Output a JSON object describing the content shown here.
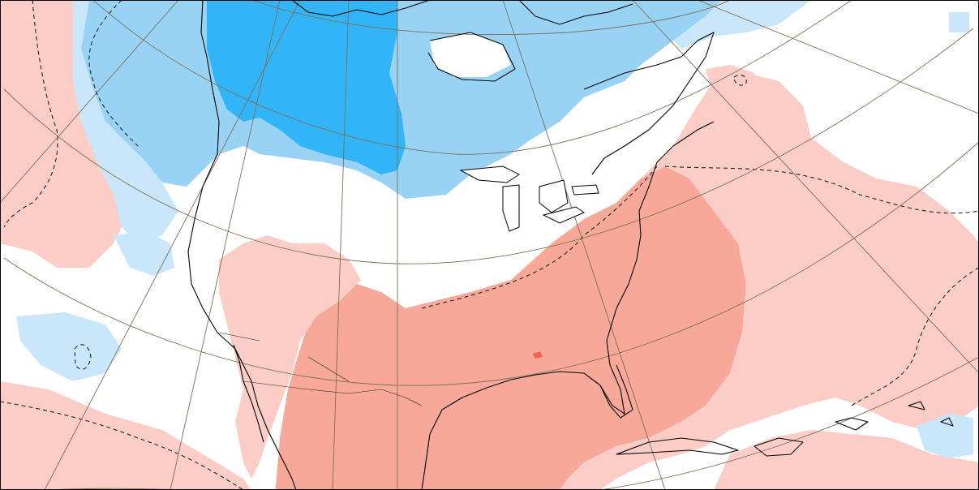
{
  "map": {
    "kind": "temperature anomaly map, North America",
    "colors": {
      "warm_weak": "#fbcdc6",
      "warm_moderate": "#f8a898",
      "warm_strong": "#f2624a",
      "cold_weak": "#c9e6fa",
      "cold_moderate": "#98d3f6",
      "cold_strong": "#32b5f8",
      "neutral": "#ffffff",
      "coastline": "#000000",
      "graticule": "#7d6f57",
      "frame": "#000000"
    },
    "regions": [
      {
        "name": "canada-cold-core",
        "category": "cold_strong"
      },
      {
        "name": "canada-cold-band",
        "category": "cold_moderate"
      },
      {
        "name": "northern-plains-neutral",
        "category": "neutral"
      },
      {
        "name": "southern-us-warm",
        "category": "warm_moderate"
      },
      {
        "name": "atlantic-warm",
        "category": "warm_weak"
      },
      {
        "name": "pacific-warm",
        "category": "warm_weak"
      },
      {
        "name": "gulf-warm-spot",
        "category": "warm_strong"
      }
    ]
  }
}
